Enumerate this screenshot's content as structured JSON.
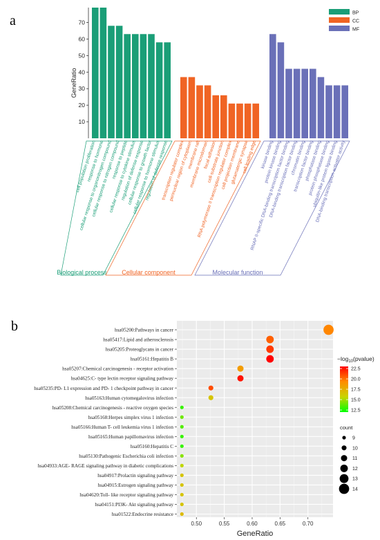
{
  "chart_data": [
    {
      "panel_label": "a",
      "type": "bar",
      "ylabel": "GeneRatio",
      "ylim": [
        0,
        79
      ],
      "yticks": [
        10,
        20,
        30,
        40,
        50,
        60,
        70
      ],
      "legend": {
        "position": "top-right",
        "items": [
          {
            "name": "BP",
            "color": "#1A9E77"
          },
          {
            "name": "CC",
            "color": "#F06424"
          },
          {
            "name": "MF",
            "color": "#6A70B8"
          }
        ]
      },
      "groups": [
        {
          "name": "Biological process",
          "legend_key": "BP",
          "color": "#1A9E77",
          "categories": [
            "cell population proliferation",
            "response to hormone",
            "cellular response to organonitrogen compound",
            "cellular response to nitrogen compound",
            "response to peptide",
            "cellular response to cytokine stimulus",
            "regulation of defense response",
            "cellular response to growth factor",
            "cellular response to hormone stimulus",
            "regulation of defense response"
          ],
          "values": [
            79,
            79,
            68,
            68,
            63,
            63,
            63,
            63,
            58,
            58
          ]
        },
        {
          "name": "Cellular component",
          "legend_key": "CC",
          "color": "#F06424",
          "categories": [
            "transcription regulator complex",
            "perinuclear region of cytoplasm",
            "membrane raft",
            "membrane microdomain",
            "focal adhesion",
            "cell-substrate junction",
            "RNA polymerase II transcription regulator complex",
            "cell projection membrane",
            "glutamatergic synapse",
            "cell leading edge"
          ],
          "values": [
            37,
            37,
            32,
            32,
            26,
            26,
            21,
            21,
            21,
            21
          ]
        },
        {
          "name": "Molecular function",
          "legend_key": "MF",
          "color": "#6A70B8",
          "categories": [
            "kinase binding",
            "protein kinase binding",
            "RNAP II-specific DNA-binding transcription factor binding",
            "DNA-binding transcription factor binding",
            "chromatin binding",
            "transcription factor binding",
            "phosphatase binding",
            "protein phosphatase binding",
            "ubiquitin-like protein ligase binding",
            "DNA-binding transcription activator activity"
          ],
          "values": [
            63,
            58,
            42,
            42,
            42,
            42,
            37,
            32,
            32,
            32
          ]
        }
      ]
    },
    {
      "panel_label": "b",
      "type": "scatter",
      "xlabel": "GeneRatio",
      "xlim": [
        0.465,
        0.745
      ],
      "xticks": [
        "0.50",
        "0.55",
        "0.60",
        "0.65",
        "0.70"
      ],
      "categories": [
        "hsa05200:Pathways in cancer",
        "hsa05417:Lipid and atherosclerosis",
        "hsa05205:Proteoglycans in cancer",
        "hsa05161:Hepatitis B",
        "hsa05207:Chemical carcinogenesis -  receptor activation",
        "hsa04625:C- type lectin receptor signaling pathway",
        "hsa05235:PD- L1 expression and PD- 1 checkpoint pathway in cancer",
        "hsa05163:Human cytomegalovirus infection",
        "hsa05208:Chemical carcinogenesis -  reactive oxygen species",
        "hsa05168:Herpes simplex virus 1 infection",
        "hsa05166:Human T- cell leukemia virus 1 infection",
        "hsa05165:Human papillomavirus infection",
        "hsa05160:Hepatitis C",
        "hsa05130:Pathogenic Escherichia coli infection",
        "hsa04933:AGE- RAGE signaling pathway in diabetic complications",
        "hsa04917:Prolactin signaling pathway",
        "hsa04915:Estrogen signaling pathway",
        "hsa04620:Toll- like receptor signaling pathway",
        "hsa04151:PI3K- Akt signaling pathway",
        "hsa01522:Endocrine resistance"
      ],
      "points": [
        {
          "x": 0.737,
          "count": 14,
          "pvalue": 19.5
        },
        {
          "x": 0.632,
          "count": 12,
          "pvalue": 20.5
        },
        {
          "x": 0.632,
          "count": 12,
          "pvalue": 21.5
        },
        {
          "x": 0.632,
          "count": 12,
          "pvalue": 23.0
        },
        {
          "x": 0.579,
          "count": 11,
          "pvalue": 18.5
        },
        {
          "x": 0.579,
          "count": 11,
          "pvalue": 22.5
        },
        {
          "x": 0.526,
          "count": 10,
          "pvalue": 21.0
        },
        {
          "x": 0.526,
          "count": 10,
          "pvalue": 16.5
        },
        {
          "x": 0.474,
          "count": 9,
          "pvalue": 13.0
        },
        {
          "x": 0.474,
          "count": 9,
          "pvalue": 14.0
        },
        {
          "x": 0.474,
          "count": 9,
          "pvalue": 13.5
        },
        {
          "x": 0.474,
          "count": 9,
          "pvalue": 13.0
        },
        {
          "x": 0.474,
          "count": 9,
          "pvalue": 13.0
        },
        {
          "x": 0.474,
          "count": 9,
          "pvalue": 14.5
        },
        {
          "x": 0.474,
          "count": 9,
          "pvalue": 15.5
        },
        {
          "x": 0.474,
          "count": 9,
          "pvalue": 16.5
        },
        {
          "x": 0.474,
          "count": 9,
          "pvalue": 16.5
        },
        {
          "x": 0.474,
          "count": 9,
          "pvalue": 16.5
        },
        {
          "x": 0.474,
          "count": 9,
          "pvalue": 16.5
        },
        {
          "x": 0.474,
          "count": 9,
          "pvalue": 17.0
        }
      ],
      "color_legend": {
        "title": "−log",
        "title_sub": "10",
        "title_suffix": "(pvalue)",
        "range": [
          12.0,
          23.0
        ],
        "ticks": [
          "22.5",
          "20.0",
          "17.5",
          "15.0",
          "12.5"
        ],
        "tick_values": [
          22.5,
          20.0,
          17.5,
          15.0,
          12.5
        ],
        "colors": [
          "#FF0000",
          "#FF8C00",
          "#C8D400",
          "#00FF00"
        ]
      },
      "size_legend": {
        "title": "count",
        "values": [
          9,
          10,
          11,
          12,
          13,
          14
        ]
      }
    }
  ]
}
